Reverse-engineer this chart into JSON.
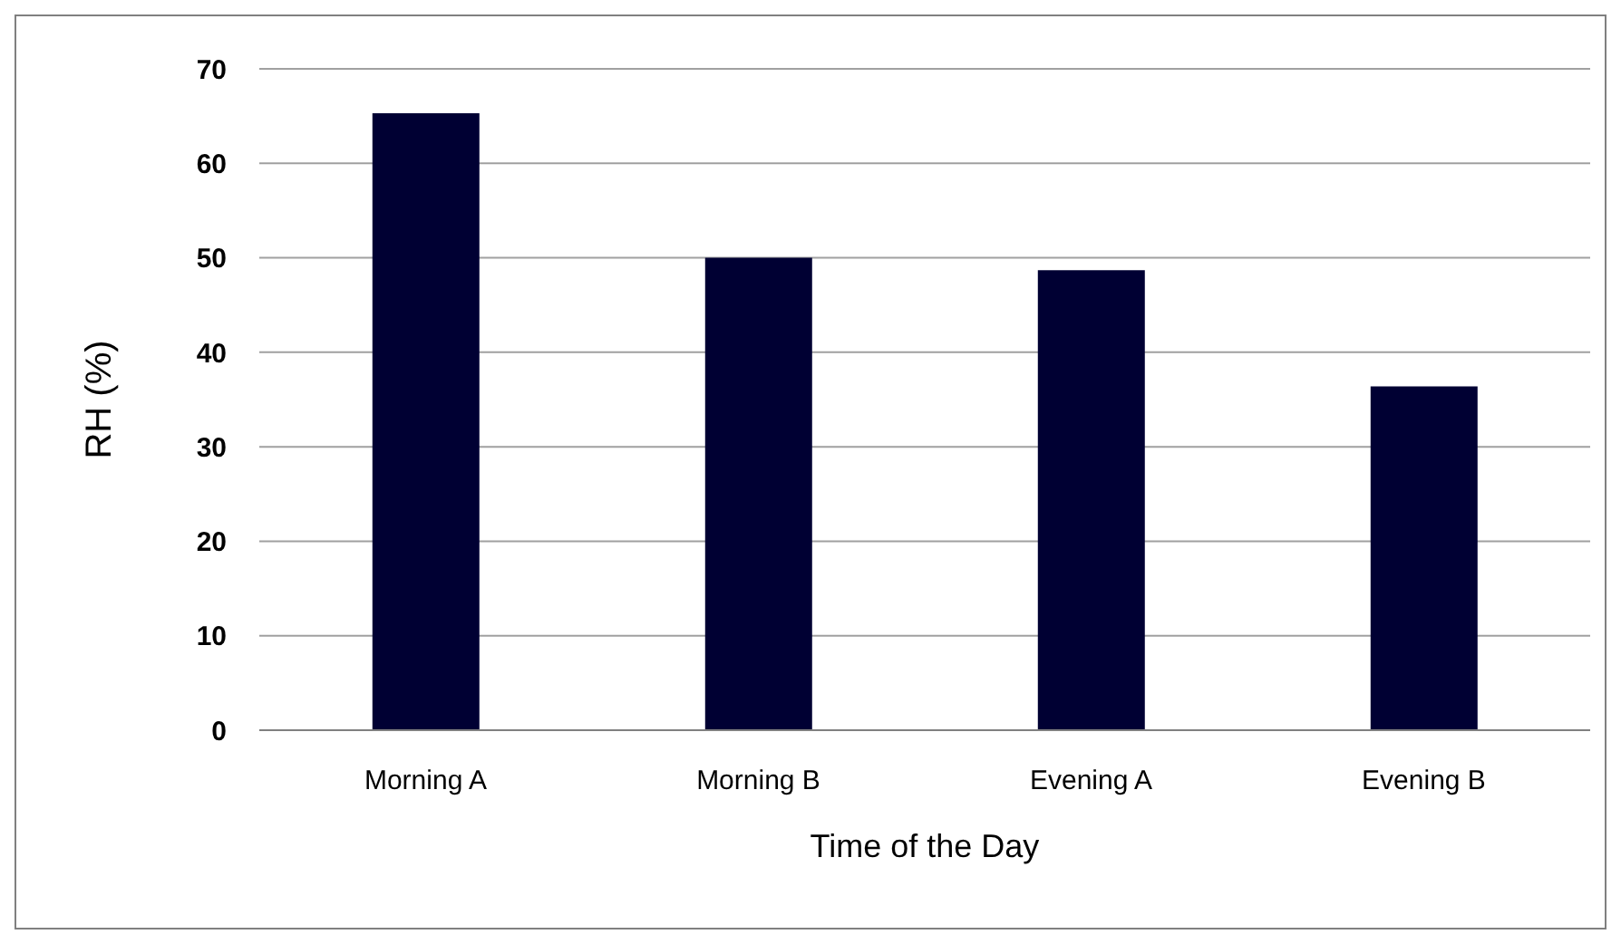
{
  "chart_data": {
    "type": "bar",
    "xlabel": "Time of the Day",
    "ylabel": "RH (%)",
    "categories": [
      "Morning A",
      "Morning B",
      "Evening A",
      "Evening B"
    ],
    "values": [
      65.3,
      50,
      48.7,
      36.4
    ],
    "color": "#000033",
    "ylim": [
      0,
      70
    ],
    "yticks": [
      0,
      10,
      20,
      30,
      40,
      50,
      60,
      70
    ],
    "grid": "y",
    "legend": false
  }
}
